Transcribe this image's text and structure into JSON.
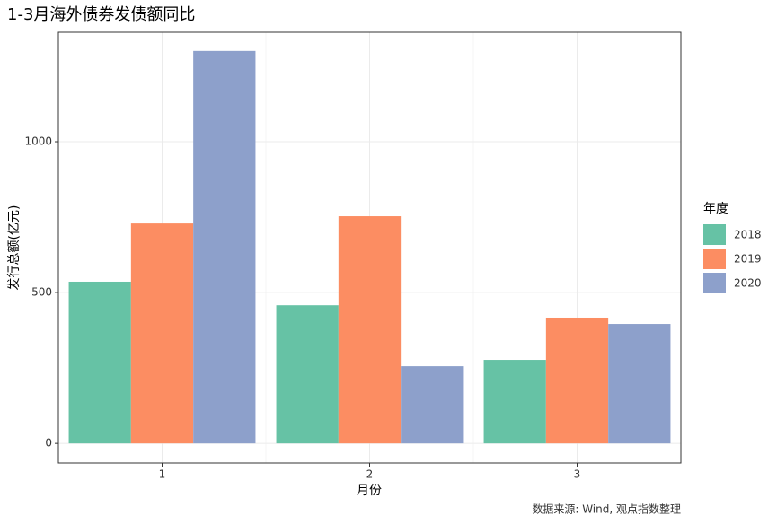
{
  "chart_data": {
    "type": "bar",
    "title": "1-3月海外债券发债额同比",
    "x_label": "月份",
    "y_label": "发行总额(亿元)",
    "caption": "数据来源: Wind, 观点指数整理",
    "legend_title": "年度",
    "legend": "right",
    "grid": true,
    "categories": [
      "1",
      "2",
      "3"
    ],
    "series": [
      {
        "name": "2018",
        "color": "#66c2a5",
        "values": [
          536,
          458,
          277
        ]
      },
      {
        "name": "2019",
        "color": "#fc8d62",
        "values": [
          729,
          753,
          417
        ]
      },
      {
        "name": "2020",
        "color": "#8da0cb",
        "values": [
          1301,
          256,
          396
        ]
      }
    ],
    "ylim": [
      -65,
      1363
    ],
    "yticks": [
      0,
      500,
      1000
    ]
  }
}
